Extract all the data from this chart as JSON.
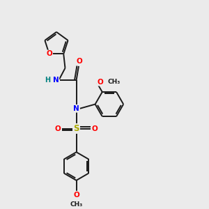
{
  "background_color": "#ebebeb",
  "bond_color": "#1a1a1a",
  "atom_colors": {
    "O": "#ff0000",
    "N": "#0000ff",
    "S": "#aaaa00",
    "H": "#008080",
    "C": "#1a1a1a"
  },
  "figsize": [
    3.0,
    3.0
  ],
  "dpi": 100
}
